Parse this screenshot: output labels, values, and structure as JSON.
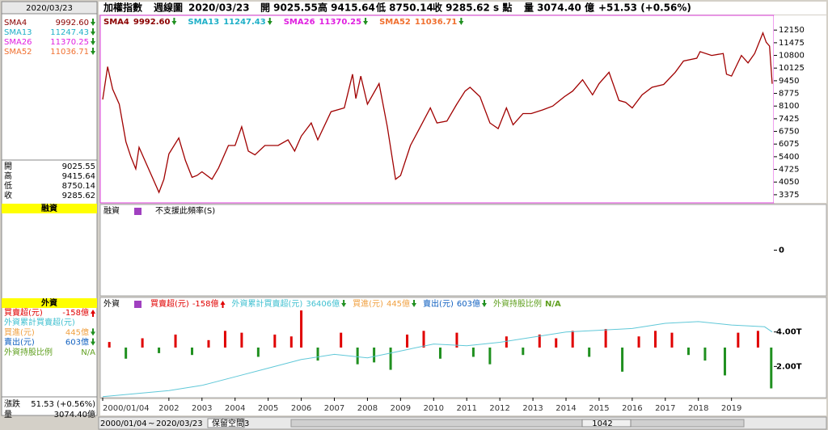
{
  "header": {
    "name": "加權指數",
    "period": "週線圖",
    "date": "2020/03/23",
    "open": "開 9025.55",
    "high": "高 9415.64",
    "low": "低 8750.14",
    "close": "收 9285.62 s 點",
    "volume": "量 3074.40 億",
    "change": "+51.53 (+0.56%)"
  },
  "left_panel": {
    "date": "2020/03/23",
    "sma": [
      {
        "name": "SMA4",
        "value": "9992.60",
        "color": "#8b0000"
      },
      {
        "name": "SMA13",
        "value": "11247.43",
        "color": "#20b0c8"
      },
      {
        "name": "SMA26",
        "value": "11370.25",
        "color": "#e020e0"
      },
      {
        "name": "SMA52",
        "value": "11036.71",
        "color": "#f07030"
      }
    ],
    "ohlc": [
      {
        "label": "開",
        "value": "9025.55"
      },
      {
        "label": "高",
        "value": "9415.64"
      },
      {
        "label": "低",
        "value": "8750.14"
      },
      {
        "label": "收",
        "value": "9285.62"
      }
    ],
    "margin_title": "融資",
    "foreign_title": "外資",
    "foreign": [
      {
        "name": "買賣超(元)",
        "value": "-158億",
        "color": "#e00000",
        "arrow": "up"
      },
      {
        "name": "外資累計買賣超(元)",
        "value": "36406億",
        "color": "#40c0d0",
        "arrow": "down"
      },
      {
        "name": "買進(元)",
        "value": "445億",
        "color": "#f0a040",
        "arrow": "down"
      },
      {
        "name": "賣出(元)",
        "value": "603億",
        "color": "#1060c0",
        "arrow": "down"
      },
      {
        "name": "外資持股比例",
        "value": "N/A",
        "color": "#60a020",
        "arrow": "none"
      }
    ],
    "change": {
      "label": "漲跌",
      "value": "51.53 (+0.56%)"
    },
    "volume": {
      "label": "量",
      "value": "3074.40億"
    }
  },
  "chart_data": [
    {
      "type": "line",
      "color": "#a00000",
      "xlim": [
        2000,
        2020.23
      ],
      "ylim": [
        2940,
        12935
      ],
      "yticks": [
        3375,
        4050,
        4725,
        5400,
        6075,
        6750,
        7425,
        8100,
        8775,
        9450,
        10125,
        10800,
        11475,
        12150
      ],
      "x": [
        2000.0,
        2000.15,
        2000.3,
        2000.5,
        2000.7,
        2000.85,
        2001.0,
        2001.1,
        2001.3,
        2001.5,
        2001.7,
        2001.85,
        2002.0,
        2002.3,
        2002.5,
        2002.7,
        2002.85,
        2003.0,
        2003.3,
        2003.5,
        2003.8,
        2004.0,
        2004.2,
        2004.4,
        2004.6,
        2004.9,
        2005.3,
        2005.6,
        2005.8,
        2006.0,
        2006.3,
        2006.5,
        2006.9,
        2007.3,
        2007.55,
        2007.65,
        2007.8,
        2008.0,
        2008.35,
        2008.6,
        2008.85,
        2009.0,
        2009.3,
        2009.6,
        2009.9,
        2010.1,
        2010.4,
        2010.7,
        2010.95,
        2011.1,
        2011.4,
        2011.7,
        2011.95,
        2012.2,
        2012.4,
        2012.7,
        2012.95,
        2013.3,
        2013.6,
        2013.95,
        2014.2,
        2014.5,
        2014.8,
        2015.0,
        2015.3,
        2015.6,
        2015.8,
        2016.0,
        2016.3,
        2016.6,
        2016.95,
        2017.3,
        2017.55,
        2017.95,
        2018.05,
        2018.4,
        2018.75,
        2018.85,
        2019.0,
        2019.3,
        2019.5,
        2019.7,
        2019.95,
        2020.05,
        2020.15,
        2020.23
      ],
      "values": [
        8450,
        10200,
        9000,
        8200,
        6200,
        5400,
        4750,
        5900,
        5100,
        4300,
        3500,
        4200,
        5550,
        6400,
        5200,
        4300,
        4400,
        4600,
        4200,
        4800,
        6000,
        6000,
        7000,
        5700,
        5500,
        6000,
        6000,
        6300,
        5700,
        6500,
        7200,
        6300,
        7800,
        8000,
        9800,
        8500,
        9700,
        8200,
        9300,
        7000,
        4200,
        4400,
        6000,
        7000,
        8000,
        7200,
        7300,
        8200,
        8900,
        9100,
        8600,
        7200,
        6900,
        8000,
        7100,
        7700,
        7700,
        7900,
        8100,
        8600,
        8900,
        9500,
        8700,
        9300,
        9900,
        8400,
        8300,
        8000,
        8700,
        9100,
        9250,
        9900,
        10500,
        10650,
        11000,
        10800,
        10900,
        9800,
        9700,
        10800,
        10400,
        10900,
        12000,
        11500,
        11300,
        9285.62
      ]
    },
    {
      "type": "empty",
      "message": "不支援此頻率(S)",
      "ylim": [
        -1,
        1
      ],
      "yticks": [
        0
      ]
    },
    {
      "type": "bar_line",
      "xlim": [
        2000,
        2020.23
      ],
      "ylim": [
        0.19,
        6.0
      ],
      "yticks": [
        {
          "value": 2,
          "label": "2.00T"
        },
        {
          "value": 4,
          "label": "4.00T"
        }
      ],
      "xticks": [
        {
          "value": 2000,
          "label": "2000/01/04"
        },
        2002,
        2003,
        2004,
        2005,
        2006,
        2007,
        2008,
        2009,
        2010,
        2011,
        2012,
        2013,
        2014,
        2015,
        2016,
        2017,
        2018,
        2019
      ],
      "y2lim": [
        -2700,
        2700
      ],
      "up_color": "#e00000",
      "down_color": "#209020",
      "bars": {
        "x": [
          2000.2,
          2000.7,
          2001.2,
          2001.7,
          2002.2,
          2002.7,
          2003.2,
          2003.7,
          2004.2,
          2004.7,
          2005.2,
          2005.7,
          2006.0,
          2006.5,
          2007.2,
          2007.7,
          2008.2,
          2008.7,
          2009.2,
          2009.7,
          2010.2,
          2010.7,
          2011.2,
          2011.7,
          2012.2,
          2012.7,
          2013.2,
          2013.7,
          2014.2,
          2014.7,
          2015.2,
          2015.7,
          2016.2,
          2016.7,
          2017.2,
          2017.7,
          2018.2,
          2018.8,
          2019.2,
          2019.8,
          2020.2
        ],
        "values": [
          300,
          -600,
          500,
          -300,
          700,
          -400,
          400,
          900,
          800,
          -500,
          700,
          600,
          2000,
          -700,
          800,
          -900,
          -800,
          -1200,
          700,
          900,
          -600,
          800,
          -500,
          -900,
          600,
          -400,
          700,
          500,
          900,
          -500,
          1000,
          -1300,
          600,
          900,
          800,
          -400,
          -700,
          -1500,
          800,
          900,
          -2200
        ]
      },
      "line": {
        "color": "#60c8d8",
        "x": [
          2000,
          2002,
          2003,
          2004,
          2005,
          2006,
          2007,
          2008,
          2009,
          2010,
          2011,
          2012,
          2013,
          2014,
          2015,
          2016,
          2017,
          2018,
          2019,
          2020,
          2020.23
        ],
        "values": [
          0.25,
          0.6,
          0.9,
          1.4,
          1.9,
          2.4,
          2.7,
          2.5,
          2.9,
          3.3,
          3.2,
          3.4,
          3.7,
          4.0,
          4.1,
          4.2,
          4.5,
          4.6,
          4.4,
          4.3,
          4.0
        ]
      }
    }
  ],
  "controls": {
    "start": "2000/01/04",
    "tilde": "~",
    "end": "2020/03/23",
    "reserve": "保留空間",
    "reserve_value": "3",
    "count": "1042"
  }
}
